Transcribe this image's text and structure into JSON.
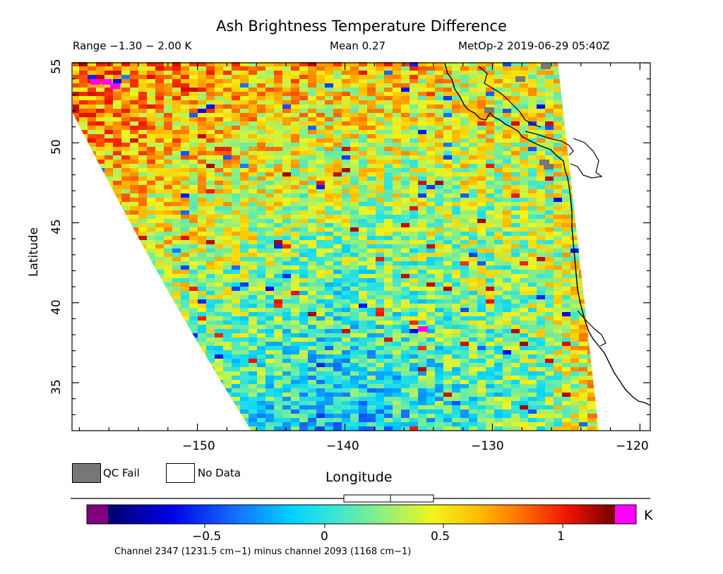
{
  "header": {
    "title": "Ash Brightness Temperature Difference",
    "range": "Range −1.30 − 2.00 K",
    "mean": "Mean 0.27",
    "instrument": "MetOp-2 2019-06-29 05:40Z"
  },
  "axes": {
    "x_label": "Longitude",
    "y_label": "Latitude",
    "x_ticks": [
      "−150",
      "−140",
      "−130",
      "−120"
    ],
    "y_ticks": [
      "55",
      "50",
      "45",
      "40",
      "35"
    ]
  },
  "legend": {
    "qc_fail_label": "QC Fail",
    "no_data_label": "No Data",
    "qc_fail_color": "#777777",
    "no_data_color": "#ffffff"
  },
  "colorbar": {
    "unit": "K",
    "tick_labels": [
      "−0.5",
      "0",
      "0.5",
      "1"
    ],
    "low_color": "#800080",
    "high_color": "#ff00ff",
    "caption": "Channel 2347 (1231.5 cm−1) minus channel 2093 (1168 cm−1)"
  },
  "map": {
    "lon_range": [
      -158.5,
      -119.3
    ],
    "lat_range": [
      32.0,
      55.0
    ],
    "range_min": -1.3,
    "range_max": 2.0,
    "mean": 0.27,
    "coastline": "west coast of North America"
  }
}
